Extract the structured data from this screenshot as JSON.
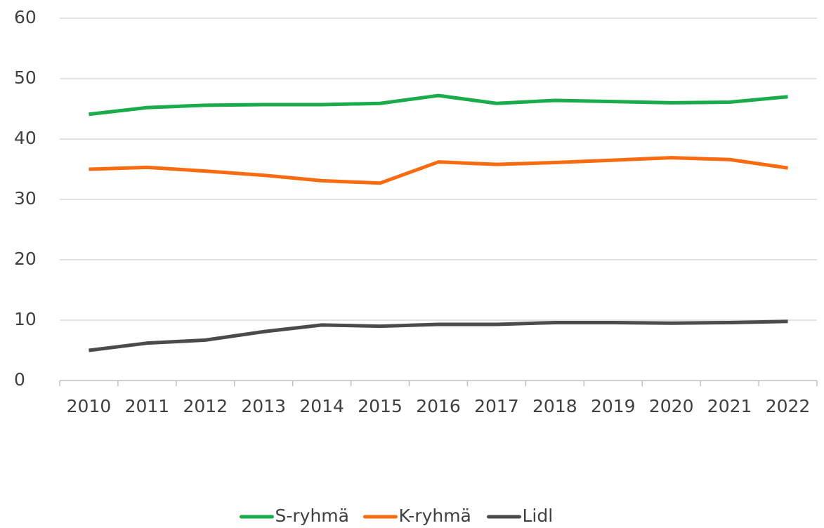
{
  "chart_data": {
    "type": "line",
    "categories": [
      "2010",
      "2011",
      "2012",
      "2013",
      "2014",
      "2015",
      "2016",
      "2017",
      "2018",
      "2019",
      "2020",
      "2021",
      "2022"
    ],
    "series": [
      {
        "name": "S-ryhmä",
        "color": "#1aab4b",
        "values": [
          44.1,
          45.2,
          45.6,
          45.7,
          45.7,
          45.9,
          47.2,
          45.9,
          46.4,
          46.2,
          46.0,
          46.1,
          47.0
        ]
      },
      {
        "name": "K-ryhmä",
        "color": "#f96b10",
        "values": [
          35.0,
          35.3,
          34.7,
          34.0,
          33.1,
          32.7,
          36.2,
          35.8,
          36.1,
          36.5,
          36.9,
          36.6,
          35.2
        ]
      },
      {
        "name": "Lidl",
        "color": "#4b4b4d",
        "values": [
          5.0,
          6.2,
          6.7,
          8.1,
          9.2,
          9.0,
          9.3,
          9.3,
          9.6,
          9.6,
          9.5,
          9.6,
          9.8
        ]
      }
    ],
    "ylim": [
      0,
      60
    ],
    "yticks": [
      0,
      10,
      20,
      30,
      40,
      50,
      60
    ],
    "grid": true,
    "legend": "bottom"
  }
}
